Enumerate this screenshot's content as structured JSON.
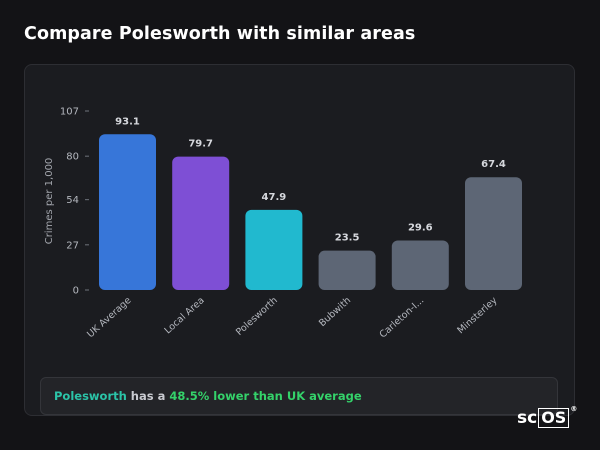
{
  "page": {
    "title": "Compare Polesworth with similar areas"
  },
  "summary": {
    "area": "Polesworth",
    "middle": " has a ",
    "comparison": "48.5% lower than UK average"
  },
  "brand": {
    "text_prefix": "sc",
    "text_box": "OS",
    "registered": "®"
  },
  "colors": {
    "uk_average": "#3776d9",
    "local_area": "#7e4fd5",
    "selected_area": "#21b9cf",
    "other_areas": "#5d6675",
    "summary_area_text": "#2bc4a8",
    "summary_percent_text": "#34d26a"
  },
  "chart_data": {
    "type": "bar",
    "categories": [
      "UK Average",
      "Local Area",
      "Polesworth",
      "Bubwith",
      "Carleton-I...",
      "Minsterley"
    ],
    "values": [
      93.1,
      79.7,
      47.9,
      23.5,
      29.6,
      67.4
    ],
    "value_labels": [
      "93.1",
      "79.7",
      "47.9",
      "23.5",
      "29.6",
      "67.4"
    ],
    "bar_colors": [
      "#3776d9",
      "#7e4fd5",
      "#21b9cf",
      "#5d6675",
      "#5d6675",
      "#5d6675"
    ],
    "ylabel": "Crimes per 1,000",
    "xlabel": "",
    "yticks": [
      0,
      27,
      54,
      80,
      107
    ],
    "ylim": [
      0,
      107
    ],
    "grid": false,
    "legend": "none"
  }
}
